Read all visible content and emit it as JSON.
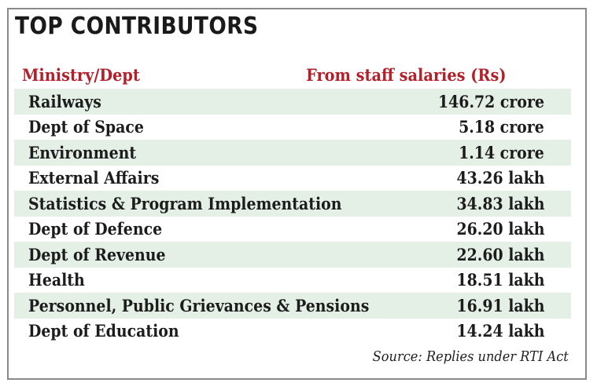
{
  "title": "TOP CONTRIBUTORS",
  "table": {
    "headers": [
      "Ministry/Dept",
      "From staff salaries (Rs)"
    ],
    "rows": [
      {
        "name": "Railways",
        "value": "146.72 crore"
      },
      {
        "name": "Dept of Space",
        "value": "5.18 crore"
      },
      {
        "name": "Environment",
        "value": "1.14 crore"
      },
      {
        "name": "External Affairs",
        "value": "43.26 lakh"
      },
      {
        "name": "Statistics & Program Implementation",
        "value": "34.83 lakh"
      },
      {
        "name": "Dept of Defence",
        "value": "26.20 lakh"
      },
      {
        "name": "Dept of Revenue",
        "value": "22.60 lakh"
      },
      {
        "name": "Health",
        "value": "18.51 lakh"
      },
      {
        "name": "Personnel, Public Grievances & Pensions",
        "value": "16.91 lakh"
      },
      {
        "name": "Dept of Education",
        "value": "14.24 lakh"
      }
    ]
  },
  "source": "Source: Replies under RTI Act",
  "colors": {
    "header_text": "#b3202a",
    "row_shade": "#e4f0e6",
    "border": "#8a8a8a"
  }
}
